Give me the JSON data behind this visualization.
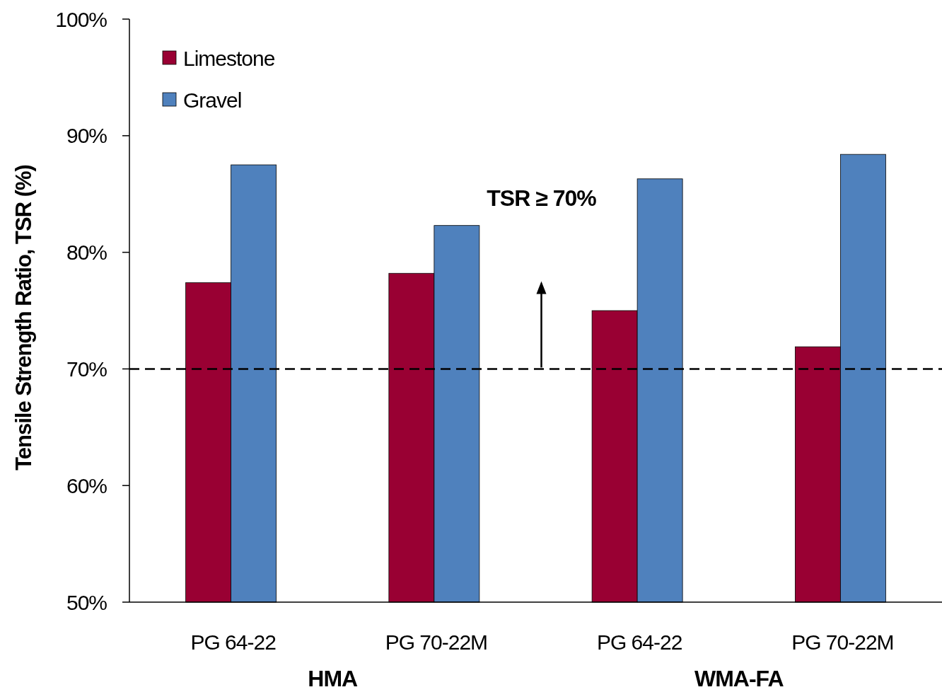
{
  "chart_data": {
    "type": "bar",
    "ylabel": "Tensile Strength Ratio, TSR (%)",
    "categories": [
      "PG 64-22",
      "PG 70-22M",
      "PG 64-22",
      "PG 70-22M"
    ],
    "series": [
      {
        "name": "Limestone",
        "color": "#990033",
        "values": [
          77.4,
          78.2,
          75.0,
          71.9
        ]
      },
      {
        "name": "Gravel",
        "color": "#4f81bd",
        "values": [
          87.5,
          82.3,
          86.3,
          88.4
        ]
      }
    ],
    "ylim": [
      50,
      100
    ],
    "yticks": [
      {
        "value": 50,
        "label": "50%"
      },
      {
        "value": 60,
        "label": "60%"
      },
      {
        "value": 70,
        "label": "70%"
      },
      {
        "value": 80,
        "label": "80%"
      },
      {
        "value": 90,
        "label": "90%"
      },
      {
        "value": 100,
        "label": "100%"
      }
    ],
    "ref_lines": [
      {
        "axis": "y",
        "value": 70,
        "color": "#000000",
        "line_style": "dashed"
      }
    ],
    "annotations": [
      "HMA",
      "WMA-FA",
      "TSR ≥ 70%"
    ],
    "legend": "top left",
    "grid": false
  }
}
